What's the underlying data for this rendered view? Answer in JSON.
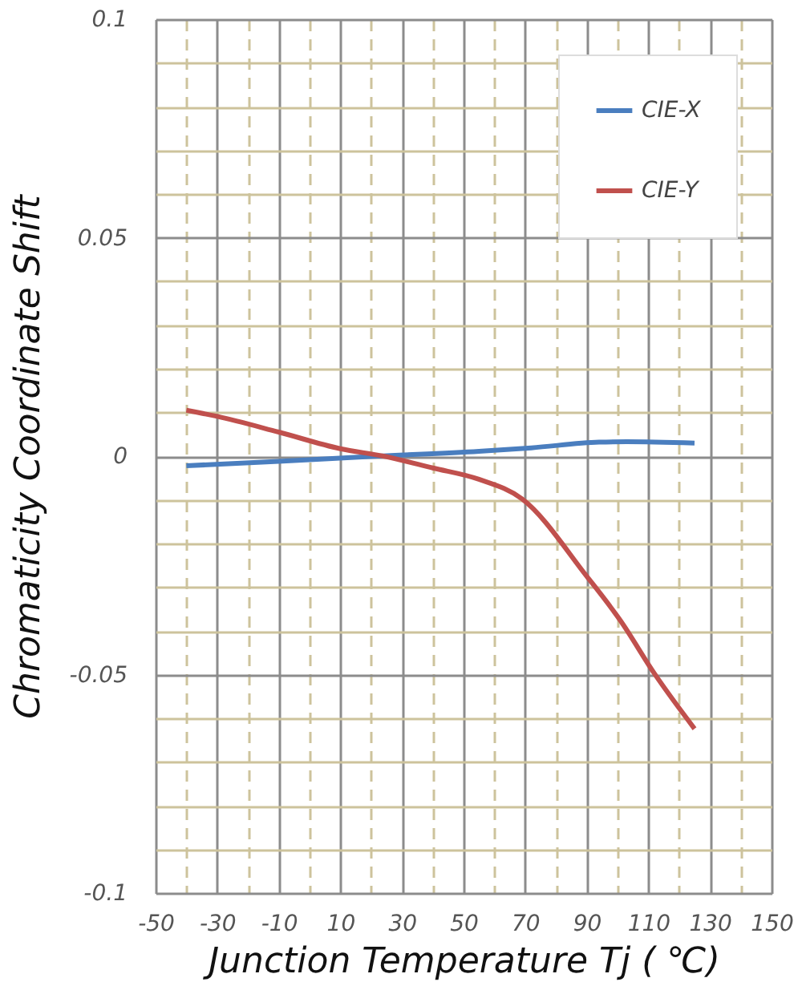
{
  "chart_data": {
    "type": "line",
    "xlabel": "Junction Temperature Tj ( ℃)",
    "ylabel": "Chromaticity Coordinate Shift",
    "xlim": [
      -50,
      150
    ],
    "xticks": [
      -50,
      {
        "value": -40,
        "label": null
      },
      -30,
      {
        "value": -20,
        "label": null
      },
      -10,
      {
        "value": 0,
        "label": null
      },
      10,
      {
        "value": 20,
        "label": null
      },
      30,
      {
        "value": 40,
        "label": null
      },
      50,
      {
        "value": 60,
        "label": null
      },
      70,
      {
        "value": 80,
        "label": null
      },
      90,
      {
        "value": 100,
        "label": null
      },
      110,
      {
        "value": 120,
        "label": null
      },
      130,
      {
        "value": 140,
        "label": null
      },
      150
    ],
    "ylim": [
      -0.1,
      0.1
    ],
    "yticks": [
      -0.1,
      {
        "value": -0.09,
        "label": null
      },
      {
        "value": -0.08,
        "label": null
      },
      {
        "value": -0.07,
        "label": null
      },
      {
        "value": -0.06,
        "label": null
      },
      -0.05,
      {
        "value": -0.04,
        "label": null
      },
      {
        "value": -0.03,
        "label": null
      },
      {
        "value": -0.02,
        "label": null
      },
      {
        "value": -0.01,
        "label": null
      },
      0,
      {
        "value": 0.01,
        "label": null
      },
      {
        "value": 0.02,
        "label": null
      },
      {
        "value": 0.03,
        "label": null
      },
      {
        "value": 0.04,
        "label": null
      },
      0.05,
      {
        "value": 0.06,
        "label": null
      },
      {
        "value": 0.07,
        "label": null
      },
      {
        "value": 0.08,
        "label": null
      },
      {
        "value": 0.09,
        "label": null
      },
      0.1
    ],
    "grid": true,
    "legend": "top right",
    "marker": "none",
    "line_style": "solid",
    "series": [
      {
        "name": "CIE-X",
        "color": "#4a7ebf",
        "x": [
          -40,
          -10,
          22,
          55,
          72,
          94,
          103,
          125
        ],
        "values": [
          -0.0022,
          -0.0012,
          0.0,
          0.0011,
          0.0019,
          0.0032,
          0.0033,
          0.003
        ]
      },
      {
        "name": "CIE-Y",
        "color": "#c0504d",
        "x": [
          -40,
          -30,
          -10,
          10,
          24,
          40,
          55,
          69,
          90,
          101,
          112,
          125
        ],
        "values": [
          0.0105,
          0.0091,
          0.0055,
          0.0017,
          0.0,
          -0.0027,
          -0.0053,
          -0.0098,
          -0.0275,
          -0.0377,
          -0.0498,
          -0.0624
        ]
      }
    ]
  }
}
